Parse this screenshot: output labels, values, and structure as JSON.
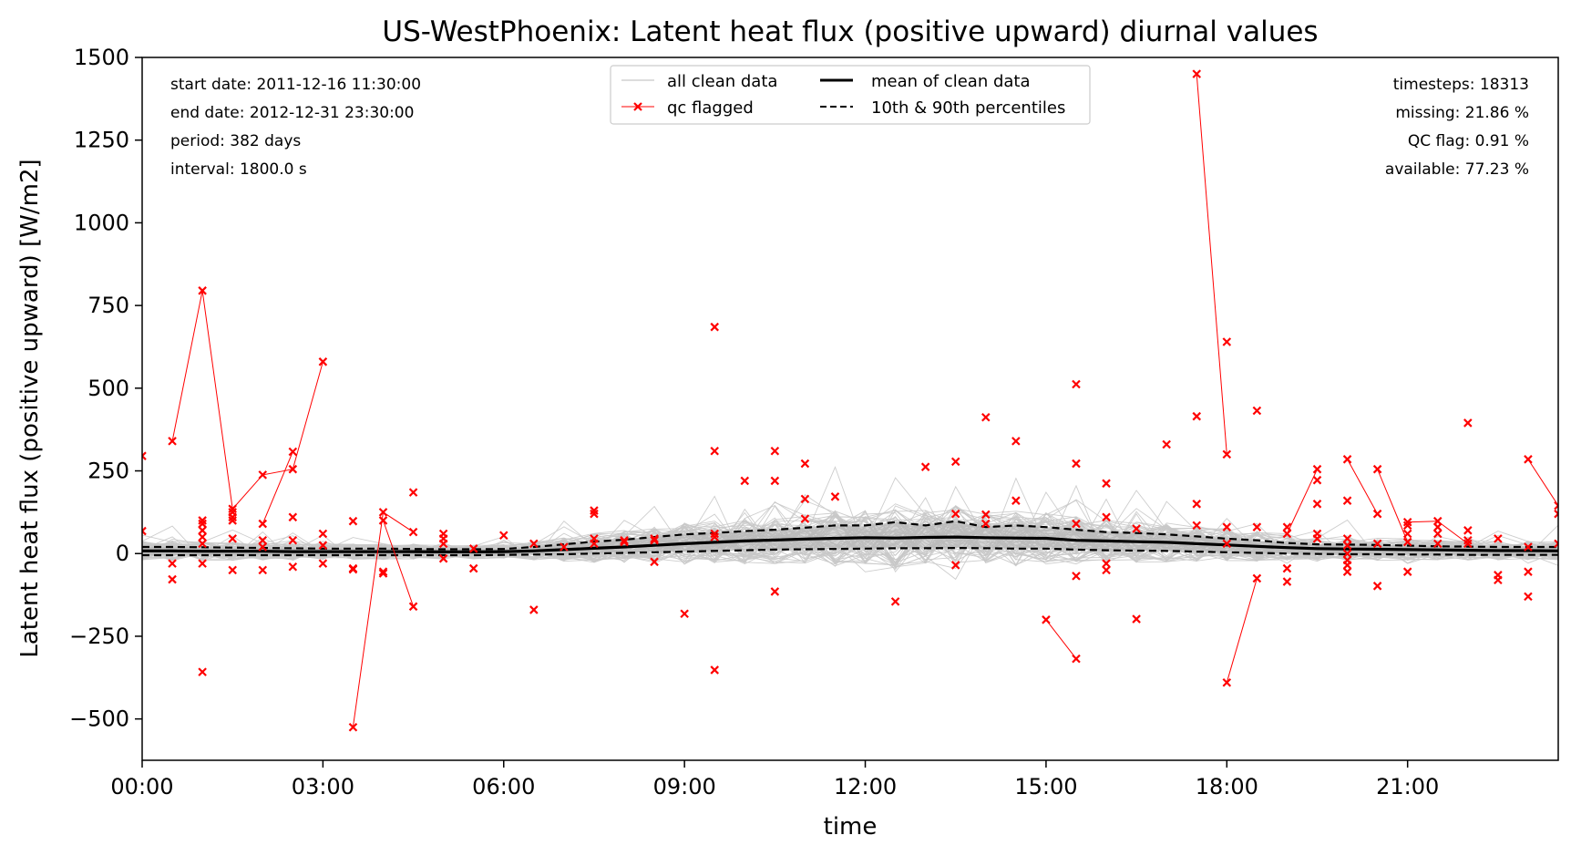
{
  "chart_data": {
    "type": "line",
    "title": "US-WestPhoenix: Latent heat flux (positive upward) diurnal values",
    "xlabel": "time",
    "ylabel": "Latent heat flux (positive upward) [W/m2]",
    "xlim_hours": [
      0,
      23.5
    ],
    "ylim": [
      -625,
      1500
    ],
    "xticks": {
      "values": [
        0,
        3,
        6,
        9,
        12,
        15,
        18,
        21
      ],
      "labels": [
        "00:00",
        "03:00",
        "06:00",
        "09:00",
        "12:00",
        "15:00",
        "18:00",
        "21:00"
      ]
    },
    "yticks": {
      "values": [
        -500,
        -250,
        0,
        250,
        500,
        750,
        1000,
        1250,
        1500
      ],
      "labels": [
        "−500",
        "−250",
        "0",
        "250",
        "500",
        "750",
        "1000",
        "1250",
        "1500"
      ]
    },
    "info_left": [
      "start date: 2011-12-16 11:30:00",
      "end date: 2012-12-31 23:30:00",
      "period: 382 days",
      "interval: 1800.0 s"
    ],
    "info_right": [
      "timesteps: 18313",
      "missing: 21.86 %",
      "QC flag: 0.91 %",
      "available: 77.23 %"
    ],
    "legend": {
      "position": "top-center",
      "entries": [
        {
          "key": "all_clean",
          "label": "all clean data"
        },
        {
          "key": "mean",
          "label": "mean of clean data"
        },
        {
          "key": "qc",
          "label": "qc flagged"
        },
        {
          "key": "pct",
          "label": "10th & 90th percentiles"
        }
      ]
    },
    "colors": {
      "clean": "#c8c8c8",
      "mean": "#000000",
      "qc": "#ff0000"
    },
    "hours": [
      0,
      0.5,
      1,
      1.5,
      2,
      2.5,
      3,
      3.5,
      4,
      4.5,
      5,
      5.5,
      6,
      6.5,
      7,
      7.5,
      8,
      8.5,
      9,
      9.5,
      10,
      10.5,
      11,
      11.5,
      12,
      12.5,
      13,
      13.5,
      14,
      14.5,
      15,
      15.5,
      16,
      16.5,
      17,
      17.5,
      18,
      18.5,
      19,
      19.5,
      20,
      20.5,
      21,
      21.5,
      22,
      22.5,
      23,
      23.5
    ],
    "series": [
      {
        "name": "mean of clean data",
        "values": [
          8,
          8,
          7,
          7,
          7,
          6,
          6,
          6,
          6,
          6,
          5,
          5,
          6,
          8,
          12,
          16,
          20,
          25,
          30,
          34,
          38,
          41,
          44,
          46,
          48,
          47,
          49,
          50,
          48,
          47,
          46,
          40,
          38,
          36,
          34,
          30,
          26,
          22,
          18,
          15,
          14,
          13,
          12,
          11,
          10,
          9,
          9,
          8
        ]
      },
      {
        "name": "90th percentile",
        "values": [
          20,
          20,
          19,
          18,
          17,
          16,
          15,
          15,
          15,
          14,
          13,
          13,
          14,
          20,
          28,
          36,
          42,
          50,
          58,
          62,
          68,
          72,
          78,
          85,
          85,
          95,
          85,
          98,
          80,
          85,
          80,
          72,
          65,
          62,
          58,
          52,
          45,
          40,
          32,
          28,
          27,
          26,
          24,
          22,
          21,
          20,
          20,
          20
        ]
      },
      {
        "name": "10th percentile",
        "values": [
          -5,
          -5,
          -5,
          -5,
          -5,
          -5,
          -5,
          -5,
          -5,
          -5,
          -5,
          -5,
          -4,
          -3,
          -2,
          0,
          2,
          4,
          6,
          8,
          10,
          12,
          13,
          14,
          15,
          16,
          16,
          17,
          16,
          15,
          15,
          12,
          10,
          9,
          8,
          6,
          4,
          2,
          0,
          -1,
          -2,
          -2,
          -3,
          -3,
          -4,
          -4,
          -4,
          -4
        ]
      }
    ],
    "qc_flagged_points": [
      [
        0,
        295
      ],
      [
        0,
        68
      ],
      [
        0.5,
        340
      ],
      [
        0.5,
        -78
      ],
      [
        0.5,
        -30
      ],
      [
        1,
        795
      ],
      [
        1,
        100
      ],
      [
        1,
        90
      ],
      [
        1,
        70
      ],
      [
        1,
        50
      ],
      [
        1,
        30
      ],
      [
        1,
        -30
      ],
      [
        1,
        -358
      ],
      [
        1.5,
        135
      ],
      [
        1.5,
        125
      ],
      [
        1.5,
        110
      ],
      [
        1.5,
        100
      ],
      [
        1.5,
        45
      ],
      [
        1.5,
        -50
      ],
      [
        2,
        238
      ],
      [
        2,
        90
      ],
      [
        2,
        40
      ],
      [
        2,
        20
      ],
      [
        2,
        -50
      ],
      [
        2.5,
        308
      ],
      [
        2.5,
        255
      ],
      [
        2.5,
        110
      ],
      [
        2.5,
        40
      ],
      [
        2.5,
        -40
      ],
      [
        3,
        580
      ],
      [
        3,
        60
      ],
      [
        3,
        25
      ],
      [
        3,
        -30
      ],
      [
        3.5,
        98
      ],
      [
        3.5,
        -45
      ],
      [
        3.5,
        -48
      ],
      [
        3.5,
        -525
      ],
      [
        4,
        125
      ],
      [
        4,
        100
      ],
      [
        4,
        -55
      ],
      [
        4,
        -60
      ],
      [
        4.5,
        185
      ],
      [
        4.5,
        65
      ],
      [
        4.5,
        -160
      ],
      [
        5,
        60
      ],
      [
        5,
        45
      ],
      [
        5,
        30
      ],
      [
        5,
        -15
      ],
      [
        5.5,
        15
      ],
      [
        5.5,
        -45
      ],
      [
        6,
        55
      ],
      [
        6.5,
        30
      ],
      [
        6.5,
        -170
      ],
      [
        7,
        20
      ],
      [
        7.5,
        130
      ],
      [
        7.5,
        120
      ],
      [
        7.5,
        45
      ],
      [
        7.5,
        30
      ],
      [
        8,
        40
      ],
      [
        8,
        35
      ],
      [
        8.5,
        45
      ],
      [
        8.5,
        40
      ],
      [
        8.5,
        -25
      ],
      [
        9,
        -182
      ],
      [
        9.5,
        685
      ],
      [
        9.5,
        310
      ],
      [
        9.5,
        60
      ],
      [
        9.5,
        50
      ],
      [
        9.5,
        -352
      ],
      [
        10,
        220
      ],
      [
        10.5,
        310
      ],
      [
        10.5,
        220
      ],
      [
        10.5,
        -115
      ],
      [
        11,
        272
      ],
      [
        11,
        165
      ],
      [
        11,
        105
      ],
      [
        11.5,
        172
      ],
      [
        12.5,
        -145
      ],
      [
        13,
        262
      ],
      [
        13.5,
        278
      ],
      [
        13.5,
        120
      ],
      [
        13.5,
        -35
      ],
      [
        14,
        412
      ],
      [
        14,
        118
      ],
      [
        14,
        90
      ],
      [
        14.5,
        340
      ],
      [
        14.5,
        160
      ],
      [
        15,
        -200
      ],
      [
        15.5,
        512
      ],
      [
        15.5,
        272
      ],
      [
        15.5,
        90
      ],
      [
        15.5,
        -68
      ],
      [
        15.5,
        -318
      ],
      [
        16,
        212
      ],
      [
        16,
        110
      ],
      [
        16,
        -30
      ],
      [
        16,
        -50
      ],
      [
        16.5,
        75
      ],
      [
        16.5,
        -198
      ],
      [
        17,
        330
      ],
      [
        17.5,
        1450
      ],
      [
        17.5,
        415
      ],
      [
        17.5,
        150
      ],
      [
        17.5,
        85
      ],
      [
        18,
        640
      ],
      [
        18,
        300
      ],
      [
        18,
        80
      ],
      [
        18,
        30
      ],
      [
        18,
        -390
      ],
      [
        18.5,
        432
      ],
      [
        18.5,
        80
      ],
      [
        18.5,
        -75
      ],
      [
        19,
        80
      ],
      [
        19,
        60
      ],
      [
        19,
        -45
      ],
      [
        19,
        -85
      ],
      [
        19.5,
        255
      ],
      [
        19.5,
        222
      ],
      [
        19.5,
        150
      ],
      [
        19.5,
        60
      ],
      [
        19.5,
        45
      ],
      [
        20,
        285
      ],
      [
        20,
        160
      ],
      [
        20,
        45
      ],
      [
        20,
        25
      ],
      [
        20,
        0
      ],
      [
        20,
        -20
      ],
      [
        20,
        -35
      ],
      [
        20,
        -55
      ],
      [
        20.5,
        255
      ],
      [
        20.5,
        120
      ],
      [
        20.5,
        30
      ],
      [
        20.5,
        -98
      ],
      [
        21,
        95
      ],
      [
        21,
        85
      ],
      [
        21,
        60
      ],
      [
        21,
        35
      ],
      [
        21,
        -55
      ],
      [
        21.5,
        98
      ],
      [
        21.5,
        80
      ],
      [
        21.5,
        60
      ],
      [
        21.5,
        30
      ],
      [
        22,
        395
      ],
      [
        22,
        70
      ],
      [
        22,
        40
      ],
      [
        22,
        30
      ],
      [
        22.5,
        45
      ],
      [
        22.5,
        -65
      ],
      [
        22.5,
        -80
      ],
      [
        23,
        285
      ],
      [
        23,
        20
      ],
      [
        23,
        -55
      ],
      [
        23,
        -130
      ],
      [
        23.5,
        145
      ],
      [
        23.5,
        120
      ],
      [
        23.5,
        30
      ]
    ],
    "qc_flagged_segments": [
      [
        [
          0.5,
          340
        ],
        [
          1,
          795
        ],
        [
          1.5,
          135
        ],
        [
          2,
          238
        ],
        [
          2.5,
          255
        ],
        [
          3,
          580
        ]
      ],
      [
        [
          2.5,
          308
        ],
        [
          2,
          90
        ]
      ],
      [
        [
          3.5,
          -525
        ],
        [
          4,
          125
        ],
        [
          4.5,
          65
        ]
      ],
      [
        [
          4,
          100
        ],
        [
          4.5,
          -160
        ]
      ],
      [
        [
          15,
          -200
        ],
        [
          15.5,
          -318
        ]
      ],
      [
        [
          17.5,
          1450
        ],
        [
          18,
          300
        ]
      ],
      [
        [
          18,
          -390
        ],
        [
          18.5,
          -75
        ]
      ],
      [
        [
          19,
          60
        ],
        [
          19.5,
          255
        ]
      ],
      [
        [
          20,
          285
        ],
        [
          20.5,
          120
        ]
      ],
      [
        [
          20.5,
          255
        ],
        [
          21,
          35
        ]
      ],
      [
        [
          21,
          95
        ],
        [
          21.5,
          98
        ],
        [
          22,
          30
        ]
      ],
      [
        [
          23,
          285
        ],
        [
          23.5,
          145
        ]
      ]
    ]
  }
}
